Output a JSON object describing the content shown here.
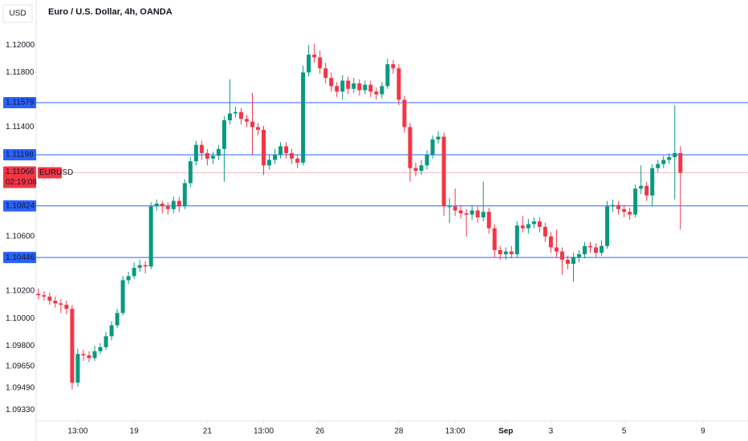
{
  "chart_data": {
    "type": "candlestick",
    "title": "Euro / U.S. Dollar, 4h, OANDA",
    "currency": "USD",
    "symbol": "EURUSD",
    "countdown": "02:19:08",
    "last_price": 1.11066,
    "up_color": "#089981",
    "down_color": "#f23645",
    "level_color": "#2962ff",
    "levels": [
      1.11579,
      1.11198,
      1.10824,
      1.10446
    ],
    "ylim": [
      1.0925,
      1.1233
    ],
    "yticks": [
      {
        "value": 1.12,
        "label": "1.12000"
      },
      {
        "value": 1.118,
        "label": "1.11800"
      },
      {
        "value": 1.114,
        "label": "1.11400"
      },
      {
        "value": 1.106,
        "label": "1.10600"
      },
      {
        "value": 1.102,
        "label": "1.10200"
      },
      {
        "value": 1.1,
        "label": "1.10000"
      },
      {
        "value": 1.098,
        "label": "1.09800"
      },
      {
        "value": 1.0965,
        "label": "1.09650"
      },
      {
        "value": 1.0949,
        "label": "1.09490"
      },
      {
        "value": 1.0933,
        "label": "1.09330"
      }
    ],
    "xlim": [
      -0.4,
      126
    ],
    "xticks": [
      {
        "value": 7,
        "label": "13:00"
      },
      {
        "value": 17,
        "label": "19"
      },
      {
        "value": 30,
        "label": "21"
      },
      {
        "value": 40,
        "label": "13:00"
      },
      {
        "value": 50,
        "label": "26"
      },
      {
        "value": 64,
        "label": "28"
      },
      {
        "value": 74,
        "label": "13:00"
      },
      {
        "value": 83,
        "label": "Sep"
      },
      {
        "value": 91,
        "label": "3"
      },
      {
        "value": 104,
        "label": "5"
      },
      {
        "value": 118,
        "label": "9"
      }
    ],
    "x": [
      0,
      1,
      2,
      3,
      4,
      5,
      6,
      7,
      8,
      9,
      10,
      11,
      12,
      13,
      14,
      15,
      16,
      17,
      18,
      19,
      20,
      21,
      22,
      23,
      24,
      25,
      26,
      27,
      28,
      29,
      30,
      31,
      32,
      33,
      34,
      35,
      36,
      37,
      38,
      39,
      40,
      41,
      42,
      43,
      44,
      45,
      46,
      47,
      48,
      49,
      50,
      51,
      52,
      53,
      54,
      55,
      56,
      57,
      58,
      59,
      60,
      61,
      62,
      63,
      64,
      65,
      66,
      67,
      68,
      69,
      70,
      71,
      72,
      73,
      74,
      75,
      76,
      77,
      78,
      79,
      80,
      81,
      82,
      83,
      84,
      85,
      86,
      87,
      88,
      89,
      90,
      91,
      92,
      93,
      94,
      95,
      96,
      97,
      98,
      99,
      100,
      101,
      102,
      103,
      104,
      105,
      106,
      107,
      108,
      109,
      110,
      111,
      112,
      113,
      114
    ],
    "open": [
      1.1018,
      1.1017,
      1.1016,
      1.1013,
      1.1011,
      1.101,
      1.1007,
      1.0953,
      1.0974,
      1.0973,
      1.0971,
      1.0976,
      1.0979,
      1.0987,
      1.0995,
      1.1004,
      1.1028,
      1.1031,
      1.1037,
      1.1039,
      1.1038,
      1.1082,
      1.1084,
      1.1082,
      1.108,
      1.1086,
      1.1082,
      1.1099,
      1.1115,
      1.1127,
      1.1121,
      1.1117,
      1.1119,
      1.1124,
      1.1145,
      1.115,
      1.1151,
      1.1146,
      1.1144,
      1.114,
      1.1138,
      1.1112,
      1.1116,
      1.112,
      1.1126,
      1.1121,
      1.1117,
      1.1114,
      1.118,
      1.1193,
      1.1191,
      1.1183,
      1.1176,
      1.117,
      1.1166,
      1.1174,
      1.1168,
      1.1172,
      1.1167,
      1.1171,
      1.1166,
      1.1164,
      1.117,
      1.1186,
      1.1183,
      1.116,
      1.114,
      1.111,
      1.1108,
      1.1112,
      1.112,
      1.1131,
      1.1133,
      1.1082,
      1.1082,
      1.1079,
      1.1077,
      1.1076,
      1.1079,
      1.1074,
      1.1078,
      1.1066,
      1.105,
      1.1047,
      1.1049,
      1.1047,
      1.1068,
      1.1066,
      1.1069,
      1.1071,
      1.1067,
      1.106,
      1.1052,
      1.1049,
      1.1043,
      1.104,
      1.1045,
      1.1047,
      1.1053,
      1.1052,
      1.1048,
      1.1053,
      1.1082,
      1.1083,
      1.108,
      1.1078,
      1.1076,
      1.1095,
      1.1097,
      1.109,
      1.111,
      1.1113,
      1.1116,
      1.1118,
      1.1121
    ],
    "high": [
      1.1022,
      1.102,
      1.1019,
      1.1016,
      1.1014,
      1.1013,
      1.101,
      1.0978,
      1.0977,
      1.0976,
      1.098,
      1.0982,
      1.099,
      1.0998,
      1.1007,
      1.1031,
      1.1034,
      1.1041,
      1.1043,
      1.1042,
      1.1085,
      1.1087,
      1.1086,
      1.1085,
      1.1089,
      1.1089,
      1.1102,
      1.1118,
      1.113,
      1.113,
      1.1124,
      1.1122,
      1.1127,
      1.1148,
      1.1175,
      1.1155,
      1.1154,
      1.1149,
      1.1165,
      1.1143,
      1.1141,
      1.112,
      1.1124,
      1.1129,
      1.1129,
      1.1124,
      1.112,
      1.1185,
      1.12,
      1.1201,
      1.1196,
      1.1187,
      1.118,
      1.1173,
      1.1178,
      1.1177,
      1.1176,
      1.1175,
      1.1174,
      1.1174,
      1.1169,
      1.1173,
      1.119,
      1.1189,
      1.1186,
      1.1163,
      1.1143,
      1.1114,
      1.1116,
      1.1123,
      1.1134,
      1.1137,
      1.1136,
      1.1088,
      1.1095,
      1.1083,
      1.108,
      1.1083,
      1.1082,
      1.11,
      1.1081,
      1.1069,
      1.1053,
      1.1052,
      1.1053,
      1.1071,
      1.1075,
      1.1073,
      1.1074,
      1.1074,
      1.107,
      1.1063,
      1.1065,
      1.1052,
      1.1046,
      1.1048,
      1.105,
      1.1056,
      1.1056,
      1.1055,
      1.1057,
      1.1086,
      1.1087,
      1.1086,
      1.1083,
      1.1081,
      1.1098,
      1.1112,
      1.11,
      1.1113,
      1.1116,
      1.1119,
      1.1121,
      1.1156,
      1.1126
    ],
    "low": [
      1.1014,
      1.1013,
      1.101,
      1.1008,
      1.1004,
      1.1003,
      1.0948,
      1.095,
      1.0969,
      1.0968,
      1.0969,
      1.0974,
      1.0977,
      1.0984,
      1.0993,
      1.1002,
      1.1025,
      1.1029,
      1.1034,
      1.1033,
      1.1036,
      1.1079,
      1.1077,
      1.1076,
      1.1077,
      1.1078,
      1.108,
      1.1096,
      1.1112,
      1.1116,
      1.1112,
      1.1113,
      1.1116,
      1.11,
      1.1142,
      1.1147,
      1.1142,
      1.114,
      1.112,
      1.1134,
      1.1105,
      1.1109,
      1.1113,
      1.1117,
      1.1117,
      1.1113,
      1.111,
      1.1112,
      1.1177,
      1.1187,
      1.1179,
      1.1172,
      1.1166,
      1.1162,
      1.116,
      1.1164,
      1.1165,
      1.1163,
      1.1164,
      1.1162,
      1.116,
      1.1161,
      1.1168,
      1.1179,
      1.1156,
      1.1136,
      1.11,
      1.1104,
      1.1105,
      1.1109,
      1.1117,
      1.1128,
      1.1075,
      1.107,
      1.1075,
      1.1073,
      1.106,
      1.1072,
      1.107,
      1.1071,
      1.1062,
      1.1045,
      1.1043,
      1.1043,
      1.1044,
      1.1045,
      1.1063,
      1.1062,
      1.1066,
      1.1063,
      1.1056,
      1.1048,
      1.1045,
      1.1032,
      1.1036,
      1.1027,
      1.1041,
      1.1044,
      1.1048,
      1.1045,
      1.1046,
      1.1051,
      1.1078,
      1.1076,
      1.1074,
      1.1072,
      1.1074,
      1.1091,
      1.1086,
      1.1082,
      1.1107,
      1.111,
      1.1113,
      1.1087,
      1.1065
    ],
    "close": [
      1.1017,
      1.1016,
      1.1013,
      1.1011,
      1.101,
      1.1007,
      1.0953,
      1.0974,
      1.0973,
      1.0971,
      1.0976,
      1.0979,
      1.0987,
      1.0995,
      1.1004,
      1.1028,
      1.1031,
      1.1037,
      1.1039,
      1.1038,
      1.1082,
      1.1084,
      1.1082,
      1.108,
      1.1086,
      1.1082,
      1.1099,
      1.1115,
      1.1127,
      1.1121,
      1.1117,
      1.1119,
      1.1124,
      1.1145,
      1.115,
      1.1151,
      1.1146,
      1.1144,
      1.114,
      1.1138,
      1.1112,
      1.1116,
      1.112,
      1.1126,
      1.1121,
      1.1117,
      1.1114,
      1.118,
      1.1193,
      1.1191,
      1.1183,
      1.1176,
      1.117,
      1.1166,
      1.1174,
      1.1168,
      1.1172,
      1.1167,
      1.1171,
      1.1166,
      1.1164,
      1.117,
      1.1186,
      1.1183,
      1.116,
      1.114,
      1.111,
      1.1108,
      1.1112,
      1.112,
      1.1131,
      1.1133,
      1.1082,
      1.1082,
      1.1079,
      1.1077,
      1.1076,
      1.1079,
      1.1074,
      1.1078,
      1.1066,
      1.105,
      1.1047,
      1.1049,
      1.1047,
      1.1068,
      1.1066,
      1.1069,
      1.1071,
      1.1067,
      1.106,
      1.1052,
      1.1049,
      1.1043,
      1.104,
      1.1045,
      1.1047,
      1.1053,
      1.1052,
      1.1048,
      1.1053,
      1.1082,
      1.1083,
      1.108,
      1.1078,
      1.1076,
      1.1095,
      1.1097,
      1.109,
      1.111,
      1.1113,
      1.1116,
      1.1118,
      1.1121,
      1.11066
    ]
  }
}
